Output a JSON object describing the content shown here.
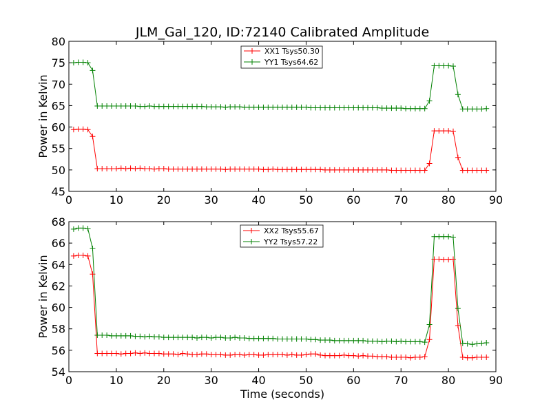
{
  "chart_data": [
    {
      "type": "line",
      "title": "JLM_Gal_120, ID:72140 Calibrated Amplitude",
      "xlabel": "",
      "ylabel": "Power in Kelvin",
      "xlim": [
        0,
        90
      ],
      "ylim": [
        45,
        80
      ],
      "xticks": [
        0,
        10,
        20,
        30,
        40,
        50,
        60,
        70,
        80,
        90
      ],
      "yticks": [
        45,
        50,
        55,
        60,
        65,
        70,
        75,
        80
      ],
      "grid": false,
      "legend": "top-center",
      "x": [
        1,
        2,
        3,
        4,
        5,
        6,
        7,
        8,
        9,
        10,
        11,
        12,
        13,
        14,
        15,
        16,
        17,
        18,
        19,
        20,
        21,
        22,
        23,
        24,
        25,
        26,
        27,
        28,
        29,
        30,
        31,
        32,
        33,
        34,
        35,
        36,
        37,
        38,
        39,
        40,
        41,
        42,
        43,
        44,
        45,
        46,
        47,
        48,
        49,
        50,
        51,
        52,
        53,
        54,
        55,
        56,
        57,
        58,
        59,
        60,
        61,
        62,
        63,
        64,
        65,
        66,
        67,
        68,
        69,
        70,
        71,
        72,
        73,
        74,
        75,
        76,
        77,
        78,
        79,
        80,
        81,
        82,
        83,
        84,
        85,
        86,
        87,
        88
      ],
      "series": [
        {
          "name": "XX1 Tsys50.30",
          "color": "#ff0000",
          "values": [
            59.4,
            59.5,
            59.5,
            59.4,
            57.8,
            50.3,
            50.3,
            50.3,
            50.3,
            50.3,
            50.4,
            50.3,
            50.4,
            50.3,
            50.4,
            50.3,
            50.3,
            50.2,
            50.3,
            50.3,
            50.2,
            50.2,
            50.2,
            50.2,
            50.2,
            50.2,
            50.2,
            50.2,
            50.2,
            50.2,
            50.2,
            50.2,
            50.1,
            50.2,
            50.2,
            50.2,
            50.2,
            50.2,
            50.2,
            50.2,
            50.1,
            50.1,
            50.2,
            50.1,
            50.1,
            50.1,
            50.1,
            50.1,
            50.1,
            50.1,
            50.1,
            50.1,
            50.1,
            50.0,
            50.0,
            50.0,
            50.0,
            50.0,
            50.0,
            50.0,
            50.0,
            50.0,
            50.0,
            50.0,
            50.0,
            50.0,
            50.0,
            49.9,
            49.9,
            49.9,
            49.9,
            49.9,
            49.9,
            49.9,
            49.9,
            51.5,
            59.1,
            59.1,
            59.1,
            59.1,
            59.0,
            52.9,
            49.9,
            49.9,
            49.9,
            49.9,
            49.9,
            49.9
          ]
        },
        {
          "name": "YY1 Tsys64.62",
          "color": "#008000",
          "values": [
            75.0,
            75.1,
            75.1,
            75.0,
            73.2,
            64.9,
            64.9,
            64.9,
            64.9,
            64.9,
            64.9,
            64.9,
            64.9,
            64.9,
            64.8,
            64.8,
            64.9,
            64.8,
            64.8,
            64.8,
            64.8,
            64.8,
            64.8,
            64.8,
            64.8,
            64.8,
            64.8,
            64.8,
            64.7,
            64.7,
            64.7,
            64.7,
            64.6,
            64.7,
            64.7,
            64.7,
            64.6,
            64.6,
            64.6,
            64.6,
            64.6,
            64.6,
            64.6,
            64.6,
            64.6,
            64.6,
            64.6,
            64.6,
            64.6,
            64.6,
            64.5,
            64.5,
            64.5,
            64.5,
            64.5,
            64.5,
            64.5,
            64.5,
            64.5,
            64.5,
            64.5,
            64.5,
            64.5,
            64.5,
            64.5,
            64.4,
            64.4,
            64.4,
            64.4,
            64.4,
            64.3,
            64.3,
            64.3,
            64.3,
            64.3,
            66.1,
            74.3,
            74.3,
            74.3,
            74.3,
            74.2,
            67.6,
            64.2,
            64.2,
            64.2,
            64.2,
            64.2,
            64.3
          ]
        }
      ]
    },
    {
      "type": "line",
      "title": "",
      "xlabel": "Time (seconds)",
      "ylabel": "Power in Kelvin",
      "xlim": [
        0,
        90
      ],
      "ylim": [
        54,
        68
      ],
      "xticks": [
        0,
        10,
        20,
        30,
        40,
        50,
        60,
        70,
        80,
        90
      ],
      "yticks": [
        54,
        56,
        58,
        60,
        62,
        64,
        66,
        68
      ],
      "grid": false,
      "legend": "top-center",
      "x": [
        1,
        2,
        3,
        4,
        5,
        6,
        7,
        8,
        9,
        10,
        11,
        12,
        13,
        14,
        15,
        16,
        17,
        18,
        19,
        20,
        21,
        22,
        23,
        24,
        25,
        26,
        27,
        28,
        29,
        30,
        31,
        32,
        33,
        34,
        35,
        36,
        37,
        38,
        39,
        40,
        41,
        42,
        43,
        44,
        45,
        46,
        47,
        48,
        49,
        50,
        51,
        52,
        53,
        54,
        55,
        56,
        57,
        58,
        59,
        60,
        61,
        62,
        63,
        64,
        65,
        66,
        67,
        68,
        69,
        70,
        71,
        72,
        73,
        74,
        75,
        76,
        77,
        78,
        79,
        80,
        81,
        82,
        83,
        84,
        85,
        86,
        87,
        88
      ],
      "series": [
        {
          "name": "XX2 Tsys55.67",
          "color": "#ff0000",
          "values": [
            64.8,
            64.85,
            64.85,
            64.8,
            63.1,
            55.7,
            55.7,
            55.7,
            55.7,
            55.7,
            55.65,
            55.7,
            55.7,
            55.75,
            55.7,
            55.75,
            55.7,
            55.7,
            55.7,
            55.65,
            55.65,
            55.65,
            55.6,
            55.7,
            55.65,
            55.6,
            55.6,
            55.65,
            55.65,
            55.6,
            55.6,
            55.6,
            55.55,
            55.55,
            55.6,
            55.6,
            55.55,
            55.6,
            55.6,
            55.55,
            55.55,
            55.6,
            55.6,
            55.6,
            55.6,
            55.55,
            55.6,
            55.55,
            55.55,
            55.6,
            55.65,
            55.65,
            55.55,
            55.5,
            55.5,
            55.5,
            55.5,
            55.55,
            55.5,
            55.5,
            55.45,
            55.5,
            55.45,
            55.45,
            55.4,
            55.4,
            55.4,
            55.35,
            55.35,
            55.35,
            55.35,
            55.3,
            55.35,
            55.35,
            55.4,
            57.0,
            64.5,
            64.5,
            64.45,
            64.45,
            64.5,
            58.3,
            55.35,
            55.3,
            55.3,
            55.35,
            55.35,
            55.35
          ]
        },
        {
          "name": "YY2 Tsys57.22",
          "color": "#008000",
          "values": [
            67.3,
            67.4,
            67.4,
            67.35,
            65.5,
            57.4,
            57.4,
            57.4,
            57.35,
            57.35,
            57.35,
            57.35,
            57.35,
            57.3,
            57.3,
            57.25,
            57.3,
            57.25,
            57.25,
            57.2,
            57.2,
            57.2,
            57.2,
            57.2,
            57.2,
            57.2,
            57.15,
            57.2,
            57.2,
            57.15,
            57.2,
            57.2,
            57.15,
            57.15,
            57.2,
            57.15,
            57.15,
            57.1,
            57.1,
            57.1,
            57.1,
            57.1,
            57.1,
            57.05,
            57.05,
            57.05,
            57.05,
            57.05,
            57.05,
            57.05,
            57.0,
            57.0,
            56.95,
            56.95,
            56.95,
            56.9,
            56.9,
            56.9,
            56.9,
            56.9,
            56.9,
            56.9,
            56.85,
            56.85,
            56.85,
            56.8,
            56.85,
            56.85,
            56.8,
            56.85,
            56.8,
            56.8,
            56.8,
            56.8,
            56.75,
            58.4,
            66.6,
            66.6,
            66.6,
            66.6,
            66.55,
            59.9,
            56.65,
            56.6,
            56.55,
            56.6,
            56.65,
            56.7
          ]
        }
      ]
    }
  ]
}
